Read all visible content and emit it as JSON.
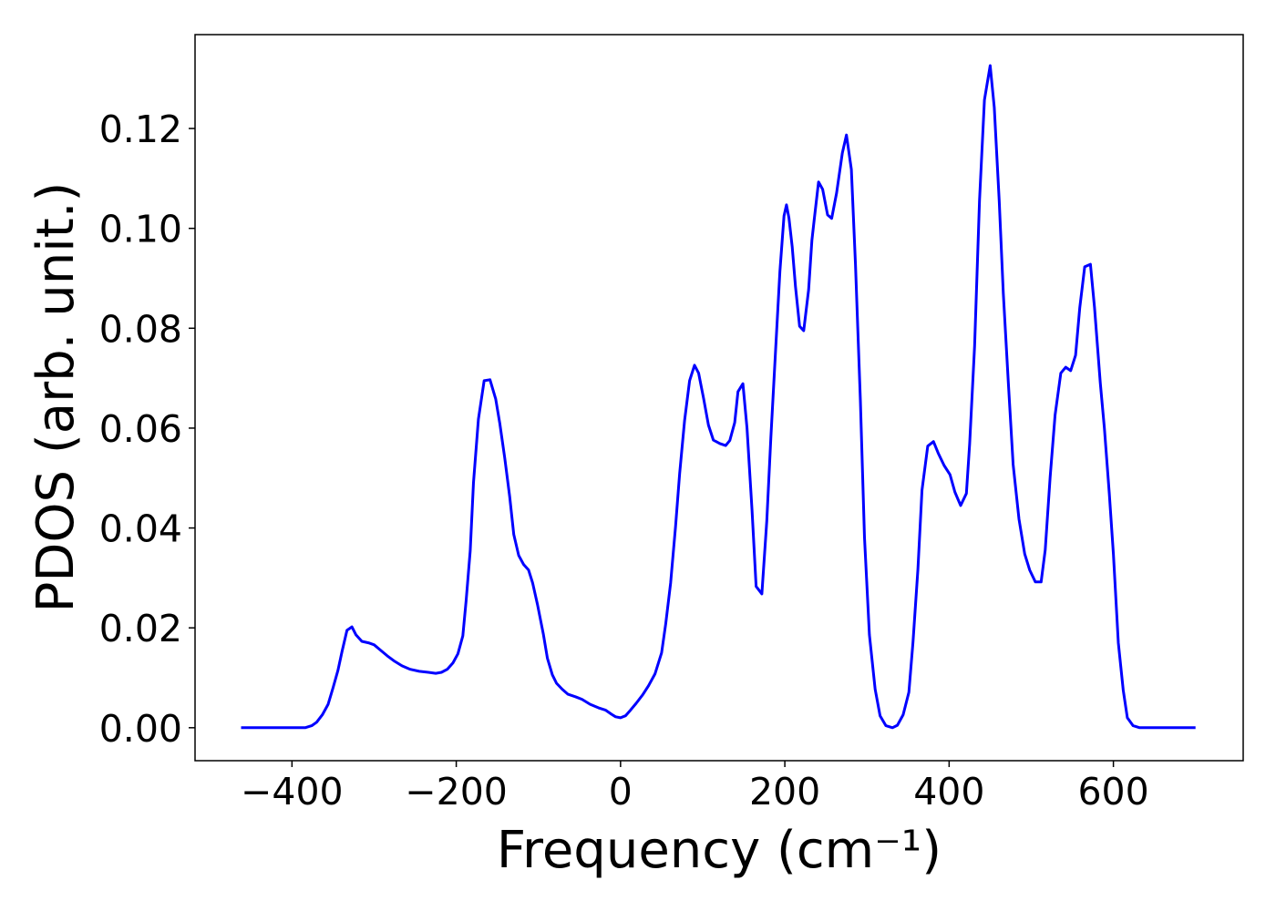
{
  "chart_data": {
    "type": "line",
    "xlabel": "Frequency (cm⁻¹)",
    "ylabel": "PDOS (arb. unit.)",
    "x": [
      -462,
      -384,
      -376,
      -370,
      -363,
      -356,
      -350,
      -344,
      -339,
      -333,
      -327,
      -322,
      -315,
      -307,
      -300,
      -292,
      -284,
      -275,
      -266,
      -256,
      -245,
      -234,
      -225,
      -218,
      -211,
      -204,
      -198,
      -192,
      -188,
      -183,
      -179,
      -173,
      -166,
      -159,
      -152,
      -147,
      -141,
      -135,
      -130,
      -124,
      -118,
      -112,
      -107,
      -101,
      -94,
      -89,
      -83,
      -78,
      -71,
      -64,
      -55,
      -47,
      -37,
      -27,
      -18,
      -11,
      -6,
      0,
      6,
      12,
      19,
      27,
      34,
      42,
      50,
      55,
      61,
      67,
      72,
      78,
      84,
      90,
      95,
      101,
      107,
      113,
      121,
      128,
      133,
      139,
      143,
      149,
      154,
      160,
      165,
      172,
      178,
      183,
      189,
      194,
      199,
      202,
      205,
      209,
      213,
      218,
      223,
      229,
      233,
      236,
      241,
      246,
      252,
      257,
      263,
      270,
      275,
      281,
      286,
      292,
      297,
      303,
      310,
      316,
      323,
      331,
      337,
      344,
      351,
      356,
      362,
      367,
      374,
      381,
      387,
      394,
      401,
      407,
      414,
      421,
      425,
      431,
      437,
      443,
      450,
      455,
      461,
      466,
      472,
      478,
      485,
      492,
      498,
      505,
      512,
      517,
      523,
      529,
      536,
      542,
      548,
      554,
      559,
      565,
      572,
      577,
      584,
      589,
      595,
      600,
      606,
      612,
      617,
      624,
      632,
      700
    ],
    "series": [
      {
        "color": "#0000ff",
        "values": [
          0,
          0,
          0.0004,
          0.0011,
          0.0026,
          0.0047,
          0.008,
          0.0115,
          0.0153,
          0.0195,
          0.0202,
          0.0186,
          0.0173,
          0.017,
          0.0166,
          0.0155,
          0.0144,
          0.0133,
          0.0124,
          0.0117,
          0.0113,
          0.0111,
          0.0109,
          0.0111,
          0.0117,
          0.013,
          0.0148,
          0.0184,
          0.0254,
          0.0354,
          0.0491,
          0.0618,
          0.0695,
          0.0697,
          0.0658,
          0.0609,
          0.054,
          0.0463,
          0.0387,
          0.0345,
          0.0327,
          0.0316,
          0.029,
          0.0246,
          0.0188,
          0.0139,
          0.0106,
          0.0089,
          0.0077,
          0.0067,
          0.0062,
          0.0057,
          0.0047,
          0.004,
          0.0035,
          0.0027,
          0.0022,
          0.002,
          0.0024,
          0.0035,
          0.0049,
          0.0066,
          0.0084,
          0.0108,
          0.015,
          0.0208,
          0.029,
          0.0403,
          0.0509,
          0.0615,
          0.0695,
          0.0726,
          0.071,
          0.066,
          0.0606,
          0.0576,
          0.0569,
          0.0565,
          0.0575,
          0.0611,
          0.0673,
          0.0689,
          0.06,
          0.0436,
          0.0283,
          0.0268,
          0.0414,
          0.0582,
          0.0764,
          0.0914,
          0.1025,
          0.1047,
          0.1021,
          0.0963,
          0.0883,
          0.0804,
          0.0795,
          0.0877,
          0.0976,
          0.102,
          0.1093,
          0.1078,
          0.1027,
          0.102,
          0.1071,
          0.1151,
          0.1187,
          0.1118,
          0.0928,
          0.0655,
          0.0381,
          0.0186,
          0.0077,
          0.0024,
          0.0004,
          0,
          0.0005,
          0.0026,
          0.0071,
          0.0171,
          0.0317,
          0.0476,
          0.0564,
          0.0573,
          0.0549,
          0.0525,
          0.0507,
          0.0472,
          0.0445,
          0.0469,
          0.0569,
          0.0764,
          0.1056,
          0.1257,
          0.1326,
          0.1242,
          0.1056,
          0.087,
          0.0695,
          0.0527,
          0.0418,
          0.0348,
          0.0316,
          0.0292,
          0.0292,
          0.0356,
          0.0502,
          0.0626,
          0.071,
          0.0722,
          0.0715,
          0.0746,
          0.0841,
          0.0923,
          0.0928,
          0.0841,
          0.0691,
          0.06,
          0.0469,
          0.0348,
          0.017,
          0.0075,
          0.002,
          0.0004,
          0,
          0
        ]
      }
    ],
    "xlim": [
      -518,
      758
    ],
    "ylim": [
      -0.0066,
      0.1388
    ],
    "xticks": [
      {
        "value": -400,
        "label": "−400"
      },
      {
        "value": -200,
        "label": "−200"
      },
      0,
      200,
      400,
      600
    ],
    "yticks": [
      {
        "value": 0,
        "label": "0.00"
      },
      0.02,
      0.04,
      0.06,
      0.08,
      {
        "value": 0.1,
        "label": "0.10"
      },
      0.12
    ]
  }
}
